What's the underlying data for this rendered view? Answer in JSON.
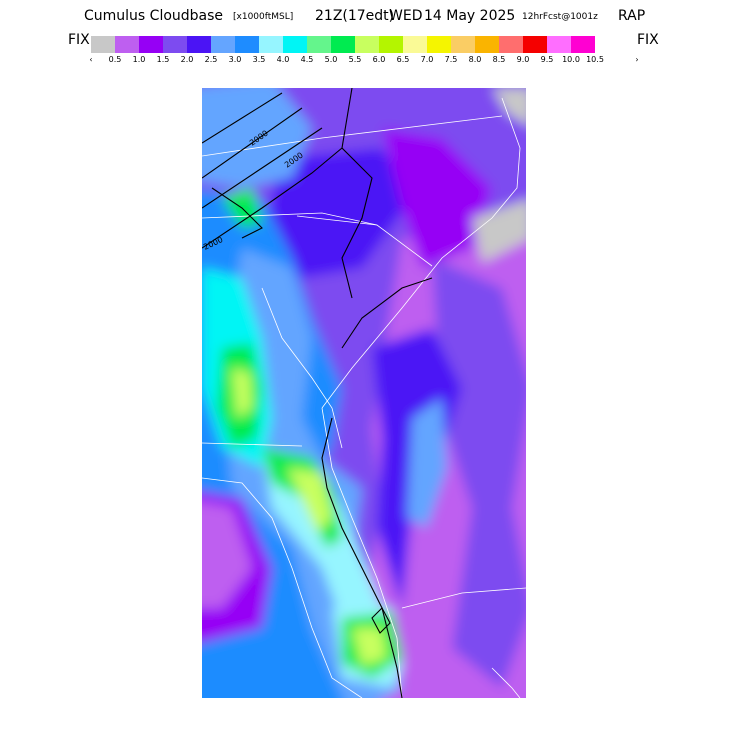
{
  "title": {
    "product": "Cumulus Cloudbase",
    "units": "[x1000ftMSL]",
    "valid_time": "21Z(17edt)",
    "day": "WED",
    "date": "14 May 2025",
    "forecast": "12hrFcst@1001z",
    "model": "RAP"
  },
  "legend": {
    "left_label": "FIX",
    "right_label": "FIX",
    "low_arrow": "‹",
    "high_arrow": "›",
    "colors": [
      "#c8c8c8",
      "#be5ff0",
      "#9600f5",
      "#7d4bf0",
      "#4b14f5",
      "#64a5ff",
      "#1e8cff",
      "#96f5ff",
      "#00f5f5",
      "#64f58c",
      "#00eb50",
      "#c8ff5f",
      "#b4f500",
      "#fafa96",
      "#f5f500",
      "#facd64",
      "#fab400",
      "#ff6e6e",
      "#f50000",
      "#ff6eff",
      "#ff00d2"
    ],
    "tick_labels": [
      "0.5",
      "1.0",
      "1.5",
      "2.0",
      "2.5",
      "3.0",
      "3.5",
      "4.0",
      "4.5",
      "5.0",
      "5.5",
      "6.0",
      "6.5",
      "7.0",
      "7.5",
      "8.0",
      "8.5",
      "9.0",
      "9.5",
      "10.0",
      "10.5"
    ]
  },
  "map": {
    "contour_labels": [
      "2000",
      "2000",
      "2000"
    ]
  }
}
